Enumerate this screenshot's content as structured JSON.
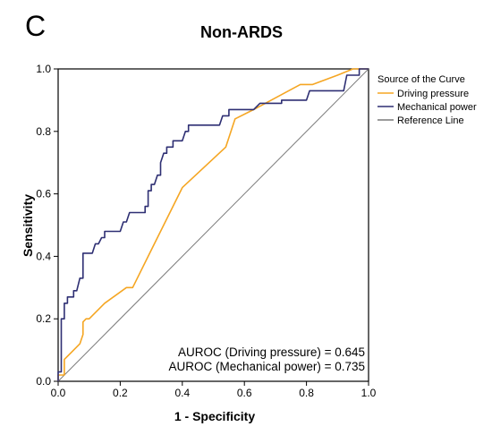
{
  "panel_label": "C",
  "chart_data": {
    "type": "line",
    "title": "Non-ARDS",
    "xlabel": "1 - Specificity",
    "ylabel": "Sensitivity",
    "xlim": [
      0,
      1
    ],
    "ylim": [
      0,
      1
    ],
    "x_ticks": [
      "0.0",
      "0.2",
      "0.4",
      "0.6",
      "0.8",
      "1.0"
    ],
    "y_ticks": [
      "0.0",
      "0.2",
      "0.4",
      "0.6",
      "0.8",
      "1.0"
    ],
    "grid": false,
    "legend": {
      "title": "Source of the Curve",
      "placement": "right",
      "entries": [
        "Driving pressure",
        "Mechanical power",
        "Reference Line"
      ]
    },
    "series": [
      {
        "name": "Driving pressure",
        "color": "#f5a623",
        "points": [
          [
            0.0,
            0.0
          ],
          [
            0.0,
            0.02
          ],
          [
            0.02,
            0.02
          ],
          [
            0.02,
            0.07
          ],
          [
            0.04,
            0.09
          ],
          [
            0.07,
            0.12
          ],
          [
            0.08,
            0.15
          ],
          [
            0.08,
            0.19
          ],
          [
            0.09,
            0.2
          ],
          [
            0.1,
            0.2
          ],
          [
            0.15,
            0.25
          ],
          [
            0.22,
            0.3
          ],
          [
            0.24,
            0.3
          ],
          [
            0.3,
            0.42
          ],
          [
            0.4,
            0.62
          ],
          [
            0.54,
            0.75
          ],
          [
            0.57,
            0.84
          ],
          [
            0.63,
            0.87
          ],
          [
            0.78,
            0.95
          ],
          [
            0.82,
            0.95
          ],
          [
            0.9,
            0.98
          ],
          [
            0.95,
            1.0
          ],
          [
            1.0,
            1.0
          ]
        ]
      },
      {
        "name": "Mechanical power",
        "color": "#2e2f73",
        "points": [
          [
            0.0,
            0.0
          ],
          [
            0.0,
            0.03
          ],
          [
            0.01,
            0.03
          ],
          [
            0.01,
            0.2
          ],
          [
            0.02,
            0.2
          ],
          [
            0.02,
            0.25
          ],
          [
            0.03,
            0.25
          ],
          [
            0.03,
            0.27
          ],
          [
            0.05,
            0.27
          ],
          [
            0.05,
            0.29
          ],
          [
            0.06,
            0.29
          ],
          [
            0.07,
            0.33
          ],
          [
            0.08,
            0.33
          ],
          [
            0.08,
            0.41
          ],
          [
            0.11,
            0.41
          ],
          [
            0.12,
            0.44
          ],
          [
            0.13,
            0.44
          ],
          [
            0.14,
            0.46
          ],
          [
            0.15,
            0.46
          ],
          [
            0.15,
            0.48
          ],
          [
            0.2,
            0.48
          ],
          [
            0.21,
            0.51
          ],
          [
            0.22,
            0.51
          ],
          [
            0.23,
            0.54
          ],
          [
            0.28,
            0.54
          ],
          [
            0.28,
            0.56
          ],
          [
            0.29,
            0.56
          ],
          [
            0.29,
            0.61
          ],
          [
            0.3,
            0.61
          ],
          [
            0.3,
            0.63
          ],
          [
            0.31,
            0.63
          ],
          [
            0.32,
            0.66
          ],
          [
            0.33,
            0.66
          ],
          [
            0.33,
            0.7
          ],
          [
            0.34,
            0.73
          ],
          [
            0.35,
            0.73
          ],
          [
            0.35,
            0.75
          ],
          [
            0.37,
            0.75
          ],
          [
            0.37,
            0.77
          ],
          [
            0.4,
            0.77
          ],
          [
            0.41,
            0.8
          ],
          [
            0.42,
            0.8
          ],
          [
            0.42,
            0.82
          ],
          [
            0.52,
            0.82
          ],
          [
            0.53,
            0.85
          ],
          [
            0.55,
            0.85
          ],
          [
            0.55,
            0.87
          ],
          [
            0.63,
            0.87
          ],
          [
            0.65,
            0.89
          ],
          [
            0.72,
            0.89
          ],
          [
            0.72,
            0.9
          ],
          [
            0.8,
            0.9
          ],
          [
            0.81,
            0.93
          ],
          [
            0.92,
            0.93
          ],
          [
            0.93,
            0.98
          ],
          [
            0.97,
            0.98
          ],
          [
            0.97,
            1.0
          ],
          [
            1.0,
            1.0
          ]
        ]
      },
      {
        "name": "Reference Line",
        "color": "#7a7a7a",
        "points": [
          [
            0.0,
            0.0
          ],
          [
            1.0,
            1.0
          ]
        ]
      }
    ],
    "annotations": [
      "AUROC (Driving pressure) = 0.645",
      "AUROC (Mechanical power) = 0.735"
    ]
  }
}
